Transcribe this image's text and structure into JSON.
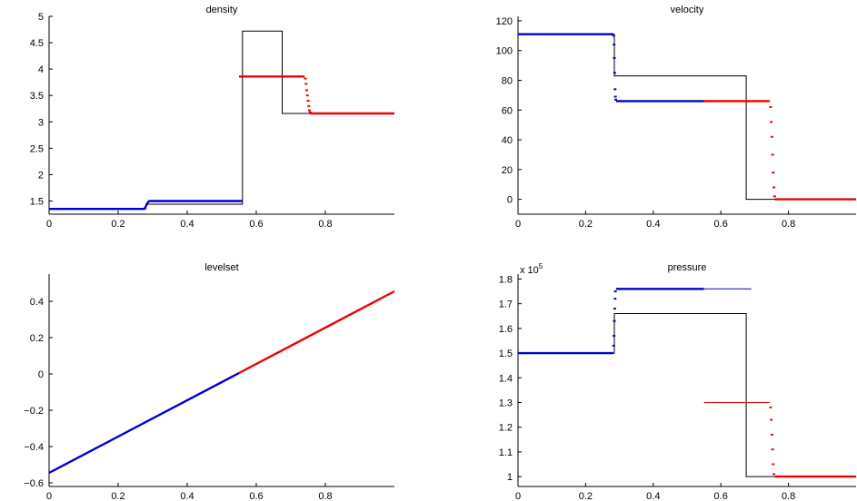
{
  "colors": {
    "exact": "#000000",
    "left_fluid": "#0000cc",
    "right_fluid": "#ee0000"
  },
  "chart_data": [
    {
      "type": "line",
      "title": "density",
      "xlim": [
        0,
        1
      ],
      "ylim": [
        1.25,
        5
      ],
      "xticks": [
        0,
        0.2,
        0.4,
        0.6,
        0.8
      ],
      "xtick_labels": [
        "0",
        "0.2",
        "0.4",
        "0.6",
        "0.8"
      ],
      "yticks": [
        1.5,
        2,
        2.5,
        3,
        3.5,
        4,
        4.5,
        5
      ],
      "ytick_labels": [
        "1.5",
        "2",
        "2.5",
        "3",
        "3.5",
        "4",
        "4.5",
        "5"
      ],
      "grid": false,
      "series": [
        {
          "role": "exact",
          "style": "line",
          "x": [
            0,
            0.28,
            0.28,
            0.56,
            0.56,
            0.675,
            0.675,
            1.0
          ],
          "y": [
            1.35,
            1.35,
            1.44,
            1.44,
            4.72,
            4.72,
            3.16,
            3.16
          ]
        },
        {
          "role": "left_fluid",
          "style": "thick",
          "x": [
            0,
            0.275,
            0.278,
            0.281,
            0.284,
            0.287,
            0.29,
            0.56
          ],
          "y": [
            1.35,
            1.35,
            1.37,
            1.41,
            1.45,
            1.48,
            1.5,
            1.5
          ]
        },
        {
          "role": "right_fluid",
          "style": "thick",
          "x": [
            0.55,
            0.74
          ],
          "y": [
            3.86,
            3.86
          ]
        },
        {
          "role": "right_fluid",
          "style": "dotted",
          "x": [
            0.742,
            0.744,
            0.746,
            0.748,
            0.75,
            0.752,
            0.754,
            0.756
          ],
          "y": [
            3.82,
            3.72,
            3.6,
            3.5,
            3.4,
            3.3,
            3.22,
            3.18
          ]
        },
        {
          "role": "right_fluid",
          "style": "thick",
          "x": [
            0.756,
            1.0
          ],
          "y": [
            3.16,
            3.16
          ]
        }
      ]
    },
    {
      "type": "line",
      "title": "velocity",
      "xlim": [
        0,
        1
      ],
      "ylim": [
        -10,
        123
      ],
      "xticks": [
        0,
        0.2,
        0.4,
        0.6,
        0.8
      ],
      "xtick_labels": [
        "0",
        "0.2",
        "0.4",
        "0.6",
        "0.8"
      ],
      "yticks": [
        0,
        20,
        40,
        60,
        80,
        100,
        120
      ],
      "ytick_labels": [
        "0",
        "20",
        "40",
        "60",
        "80",
        "100",
        "120"
      ],
      "grid": false,
      "series": [
        {
          "role": "exact",
          "style": "line",
          "x": [
            0,
            0.285,
            0.285,
            0.675,
            0.675,
            1.0
          ],
          "y": [
            111,
            111,
            83,
            83,
            0,
            0
          ]
        },
        {
          "role": "left_fluid",
          "style": "thick",
          "x": [
            0,
            0.282
          ],
          "y": [
            111,
            111
          ]
        },
        {
          "role": "left_fluid",
          "style": "dotted",
          "x": [
            0.283,
            0.284,
            0.285,
            0.286,
            0.287,
            0.288,
            0.289
          ],
          "y": [
            110,
            104,
            95,
            85,
            74,
            69,
            67
          ]
        },
        {
          "role": "left_fluid",
          "style": "thick",
          "x": [
            0.29,
            0.55
          ],
          "y": [
            66,
            66
          ]
        },
        {
          "role": "right_fluid",
          "style": "thick",
          "x": [
            0.55,
            0.745
          ],
          "y": [
            66,
            66
          ]
        },
        {
          "role": "right_fluid",
          "style": "dotted",
          "x": [
            0.747,
            0.749,
            0.751,
            0.753,
            0.755,
            0.757,
            0.759
          ],
          "y": [
            62,
            52,
            42,
            30,
            18,
            8,
            2
          ]
        },
        {
          "role": "right_fluid",
          "style": "thick",
          "x": [
            0.76,
            1.0
          ],
          "y": [
            0,
            0
          ]
        }
      ]
    },
    {
      "type": "line",
      "title": "levelset",
      "xlim": [
        0,
        1
      ],
      "ylim": [
        -0.62,
        0.55
      ],
      "xticks": [
        0,
        0.2,
        0.4,
        0.6,
        0.8
      ],
      "xtick_labels": [
        "0",
        "0.2",
        "0.4",
        "0.6",
        "0.8"
      ],
      "yticks": [
        -0.6,
        -0.4,
        -0.2,
        0,
        0.2,
        0.4
      ],
      "ytick_labels": [
        "−0.6",
        "−0.4",
        "−0.2",
        "0",
        "0.2",
        "0.4"
      ],
      "grid": false,
      "series": [
        {
          "role": "left_fluid",
          "style": "thick",
          "x": [
            0,
            0.55
          ],
          "y": [
            -0.545,
            0.005
          ]
        },
        {
          "role": "right_fluid",
          "style": "thick",
          "x": [
            0.55,
            1.0
          ],
          "y": [
            0.005,
            0.455
          ]
        }
      ]
    },
    {
      "type": "line",
      "title": "pressure",
      "y_multiplier": "x 10",
      "y_multiplier_exponent": "5",
      "xlim": [
        0,
        1
      ],
      "ylim": [
        0.96,
        1.82
      ],
      "xticks": [
        0,
        0.2,
        0.4,
        0.6,
        0.8
      ],
      "xtick_labels": [
        "0",
        "0.2",
        "0.4",
        "0.6",
        "0.8"
      ],
      "yticks": [
        1,
        1.1,
        1.2,
        1.3,
        1.4,
        1.5,
        1.6,
        1.7,
        1.8
      ],
      "ytick_labels": [
        "1",
        "1.1",
        "1.2",
        "1.3",
        "1.4",
        "1.5",
        "1.6",
        "1.7",
        "1.8"
      ],
      "grid": false,
      "series": [
        {
          "role": "exact",
          "style": "line",
          "x": [
            0,
            0.285,
            0.285,
            0.675,
            0.675,
            1.0
          ],
          "y": [
            1.5,
            1.5,
            1.66,
            1.66,
            1.0,
            1.0
          ]
        },
        {
          "role": "left_fluid",
          "style": "thick",
          "x": [
            0,
            0.282
          ],
          "y": [
            1.5,
            1.5
          ]
        },
        {
          "role": "left_fluid",
          "style": "dotted",
          "x": [
            0.283,
            0.284,
            0.285,
            0.286,
            0.287,
            0.288
          ],
          "y": [
            1.53,
            1.57,
            1.63,
            1.68,
            1.72,
            1.75
          ]
        },
        {
          "role": "left_fluid",
          "style": "thick",
          "x": [
            0.29,
            0.55
          ],
          "y": [
            1.76,
            1.76
          ]
        },
        {
          "role": "left_fluid",
          "style": "thin",
          "x": [
            0.55,
            0.69
          ],
          "y": [
            1.76,
            1.76
          ]
        },
        {
          "role": "right_fluid",
          "style": "thin",
          "x": [
            0.55,
            0.745
          ],
          "y": [
            1.3,
            1.3
          ]
        },
        {
          "role": "right_fluid",
          "style": "dotted",
          "x": [
            0.747,
            0.749,
            0.751,
            0.753,
            0.755,
            0.757
          ],
          "y": [
            1.28,
            1.23,
            1.17,
            1.11,
            1.05,
            1.01
          ]
        },
        {
          "role": "right_fluid",
          "style": "thick",
          "x": [
            0.76,
            1.0
          ],
          "y": [
            1.0,
            1.0
          ]
        }
      ]
    }
  ]
}
